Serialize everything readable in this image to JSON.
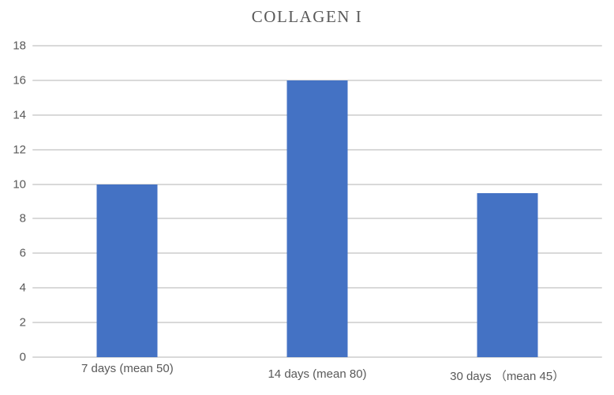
{
  "title": "COLLAGEN I",
  "colors": {
    "bar": "#4472C4",
    "gridline": "#D9D9D9",
    "axis_text": "#595959",
    "title_text": "#595959"
  },
  "chart_data": {
    "type": "bar",
    "title": "COLLAGEN I",
    "categories": [
      "7 days (mean 50)",
      "14 days (mean 80)",
      "30 days （mean 45）"
    ],
    "values": [
      10,
      16,
      9.5
    ],
    "yticks": [
      0,
      2,
      4,
      6,
      8,
      10,
      12,
      14,
      16,
      18
    ],
    "xlabel": "",
    "ylabel": "",
    "ylim": [
      0,
      18
    ],
    "grid": true,
    "legend": false
  }
}
